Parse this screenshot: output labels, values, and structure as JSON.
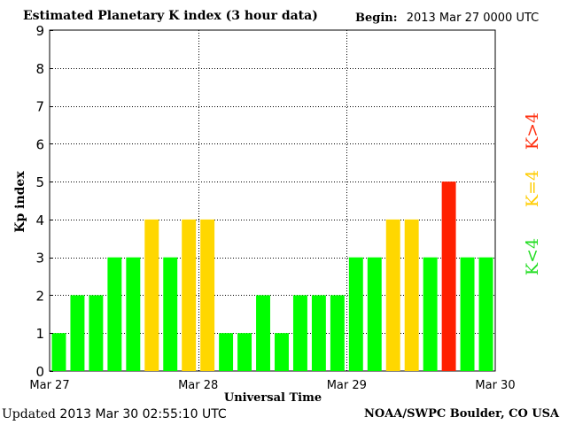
{
  "header": {
    "title": "Estimated Planetary K index (3 hour data)",
    "begin_label": "Begin:",
    "begin_value": "2013 Mar 27 0000 UTC"
  },
  "footer": {
    "updated_label": "Updated",
    "updated_value": "2013 Mar 30 02:55:10 UTC",
    "source": "NOAA/SWPC Boulder, CO USA"
  },
  "legend": {
    "high": "K>4",
    "mid": "K=4",
    "low": "K<4"
  },
  "colors": {
    "low": "#00ff00",
    "mid": "#ffd700",
    "high": "#ff2000",
    "grid": "#000000",
    "legend_low": "#22dd22",
    "legend_mid": "#ffcc00",
    "legend_high": "#ff3010"
  },
  "chart_data": {
    "type": "bar",
    "title": "Estimated Planetary K index (3 hour data)",
    "xlabel": "Universal Time",
    "ylabel": "Kp index",
    "ylim": [
      0,
      9
    ],
    "yticks": [
      "0",
      "1",
      "2",
      "3",
      "4",
      "5",
      "6",
      "7",
      "8",
      "9"
    ],
    "xticks": [
      "Mar 27",
      "Mar 28",
      "Mar 29",
      "Mar 30"
    ],
    "bars_per_day": 8,
    "grid": true,
    "values": [
      1,
      2,
      2,
      3,
      3,
      4,
      3,
      4,
      4,
      1,
      1,
      2,
      1,
      2,
      2,
      2,
      3,
      3,
      4,
      4,
      3,
      5,
      3,
      3
    ]
  }
}
